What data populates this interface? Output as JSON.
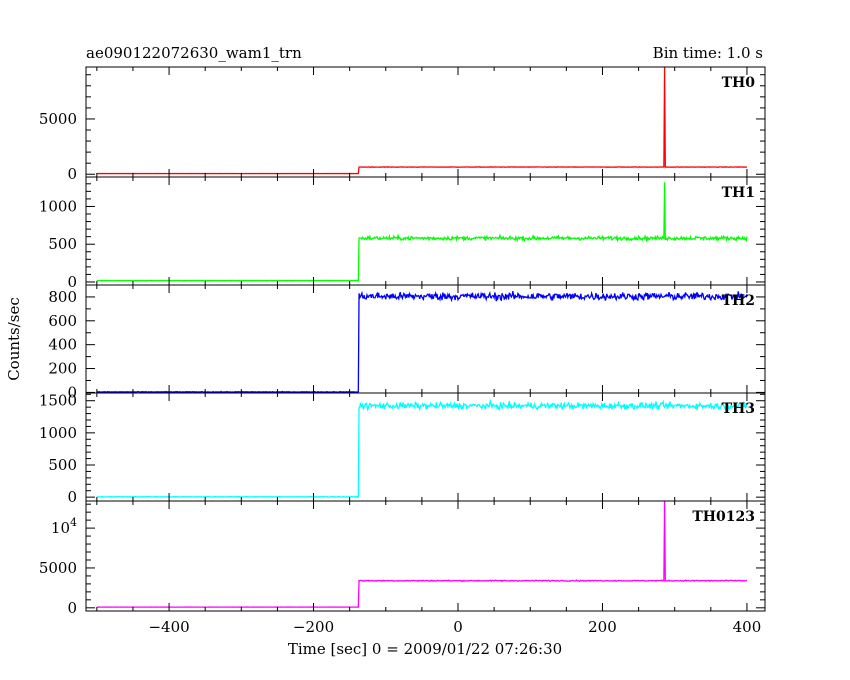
{
  "header": {
    "title": "ae090122072630_wam1_trn",
    "bin_time": "Bin time: 1.0 s"
  },
  "chart_data": {
    "type": "line",
    "title": "ae090122072630_wam1_trn",
    "subtitle": "Bin time: 1.0 s",
    "xlabel": "Time [sec] 0 = 2009/01/22 07:26:30",
    "ylabel": "Counts/sec",
    "xlim": [
      -515,
      425
    ],
    "x_major_ticks": [
      -400,
      -200,
      0,
      200,
      400
    ],
    "x_minor_step": 50,
    "grid": false,
    "panels": [
      {
        "label": "TH0",
        "color": "#ff0000",
        "ylim": [
          -250,
          9700
        ],
        "y_ticks": [
          0,
          5000
        ],
        "y_tick_labels": [
          "0",
          "5000"
        ],
        "y_minor_step": 1000,
        "series": {
          "t_start": -500,
          "t_end": 400,
          "onset_time": -137,
          "pre_level": 60,
          "post_level": 650,
          "noise": 18,
          "spike_time": 286,
          "spike_peak": 9700
        }
      },
      {
        "label": "TH1",
        "color": "#00ff00",
        "ylim": [
          -40,
          1390
        ],
        "y_ticks": [
          0,
          500,
          1000
        ],
        "y_tick_labels": [
          "0",
          "500",
          "1000"
        ],
        "y_minor_step": 100,
        "series": {
          "t_start": -500,
          "t_end": 400,
          "onset_time": -137,
          "pre_level": 18,
          "post_level": 580,
          "noise": 25,
          "spike_time": 286,
          "spike_peak": 1320
        }
      },
      {
        "label": "TH2",
        "color": "#0000ff",
        "ylim": [
          -5,
          900
        ],
        "y_ticks": [
          0,
          200,
          400,
          600,
          800
        ],
        "y_tick_labels": [
          "0",
          "200",
          "400",
          "600",
          "800"
        ],
        "y_minor_step": 100,
        "series": {
          "t_start": -500,
          "t_end": 400,
          "onset_time": -137,
          "pre_level": 4,
          "post_level": 805,
          "noise": 32
        }
      },
      {
        "label": "TH3",
        "color": "#00ffff",
        "ylim": [
          -60,
          1620
        ],
        "y_ticks": [
          0,
          500,
          1000,
          1500
        ],
        "y_tick_labels": [
          "0",
          "500",
          "1000",
          "1500"
        ],
        "y_minor_step": 100,
        "series": {
          "t_start": -500,
          "t_end": 400,
          "onset_time": -137,
          "pre_level": 5,
          "post_level": 1420,
          "noise": 50
        }
      },
      {
        "label": "TH0123",
        "color": "#ff00ff",
        "ylim": [
          -400,
          13400
        ],
        "y_ticks": [
          0,
          5000,
          10000
        ],
        "y_tick_labels": [
          "0",
          "5000",
          "10^4"
        ],
        "y_minor_step": 1000,
        "series": {
          "t_start": -500,
          "t_end": 400,
          "onset_time": -137,
          "pre_level": 90,
          "post_level": 3400,
          "noise": 60,
          "spike_time": 286,
          "spike_peak": 13400
        }
      }
    ]
  }
}
